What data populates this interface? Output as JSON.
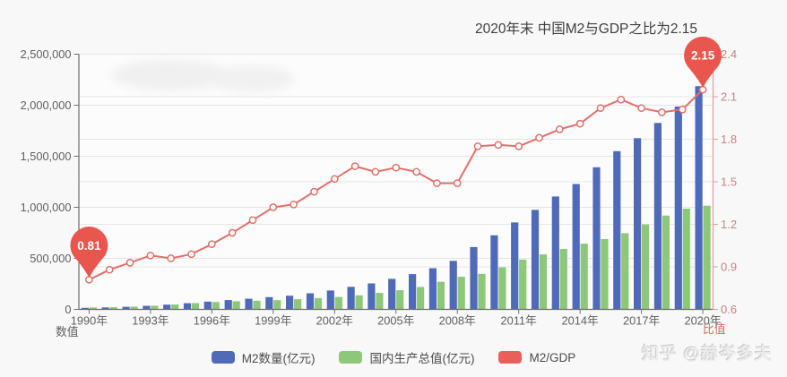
{
  "title": "2020年末 中国M2与GDP之比为2.15",
  "watermark": "知乎 @赫岑多夫",
  "legend": {
    "items": [
      {
        "label": "M2数量(亿元)",
        "color": "#4f6ab9"
      },
      {
        "label": "国内生产总值(亿元)",
        "color": "#8cc878"
      },
      {
        "label": "M2/GDP",
        "color": "#e95f5a"
      }
    ]
  },
  "chart_data": {
    "type": "bar+line",
    "title": "2020年末 中国M2与GDP之比为2.15",
    "categories": [
      1990,
      1991,
      1992,
      1993,
      1994,
      1995,
      1996,
      1997,
      1998,
      1999,
      2000,
      2001,
      2002,
      2003,
      2004,
      2005,
      2006,
      2007,
      2008,
      2009,
      2010,
      2011,
      2012,
      2013,
      2014,
      2015,
      2016,
      2017,
      2018,
      2019,
      2020
    ],
    "x_tick_labels": [
      "1990年",
      "1993年",
      "1996年",
      "1999年",
      "2002年",
      "2005年",
      "2008年",
      "2011年",
      "2014年",
      "2017年",
      "2020年"
    ],
    "x_label_every": 3,
    "series": [
      {
        "name": "M2数量(亿元)",
        "type": "bar",
        "axis": "left",
        "color": "#4f6ab9",
        "values": [
          15293,
          19350,
          25402,
          34880,
          46924,
          60751,
          76095,
          90995,
          104499,
          119898,
          134610,
          158302,
          185007,
          221223,
          254107,
          298756,
          345604,
          403442,
          475167,
          610225,
          725852,
          851591,
          974149,
          1106525,
          1228375,
          1392278,
          1550067,
          1676769,
          1826744,
          1986489,
          2186796
        ]
      },
      {
        "name": "国内生产总值(亿元)",
        "type": "bar",
        "axis": "left",
        "color": "#8cc878",
        "values": [
          18873,
          22006,
          27195,
          35673,
          48638,
          61340,
          71814,
          79715,
          85196,
          90564,
          100280,
          110863,
          121717,
          137422,
          161840,
          187319,
          219439,
          270092,
          319245,
          348518,
          412119,
          487940,
          538580,
          592963,
          643563,
          688858,
          746395,
          832036,
          919281,
          986515,
          1015986
        ]
      },
      {
        "name": "M2/GDP",
        "type": "line",
        "axis": "right",
        "color": "#e0706b",
        "values": [
          0.81,
          0.88,
          0.93,
          0.98,
          0.96,
          0.99,
          1.06,
          1.14,
          1.23,
          1.32,
          1.34,
          1.43,
          1.52,
          1.61,
          1.57,
          1.6,
          1.57,
          1.49,
          1.49,
          1.75,
          1.76,
          1.75,
          1.81,
          1.87,
          1.91,
          2.02,
          2.08,
          2.02,
          1.99,
          2.01,
          2.15
        ]
      }
    ],
    "left_axis": {
      "name": "数值",
      "min": 0,
      "max": 2500000,
      "tick_values": [
        0,
        500000,
        1000000,
        1500000,
        2000000,
        2500000
      ],
      "tick_labels": [
        "0",
        "500,000",
        "1,000,000",
        "1,500,000",
        "2,000,000",
        "2,500,000"
      ]
    },
    "right_axis": {
      "name": "比值",
      "min": 0.6,
      "max": 2.4,
      "tick_values": [
        0.6,
        0.9,
        1.2,
        1.5,
        1.8,
        2.1,
        2.4
      ],
      "tick_labels": [
        "0.6",
        "0.9",
        "1.2",
        "1.5",
        "1.8",
        "2.1",
        "2.4"
      ]
    },
    "annotations": [
      {
        "series": "M2/GDP",
        "category": 1990,
        "value": 0.81,
        "label": "0.81",
        "pin_color": "#e9564d"
      },
      {
        "series": "M2/GDP",
        "category": 2020,
        "value": 2.15,
        "label": "2.15",
        "pin_color": "#e9564d"
      }
    ],
    "grid": true,
    "legend_position": "bottom"
  }
}
